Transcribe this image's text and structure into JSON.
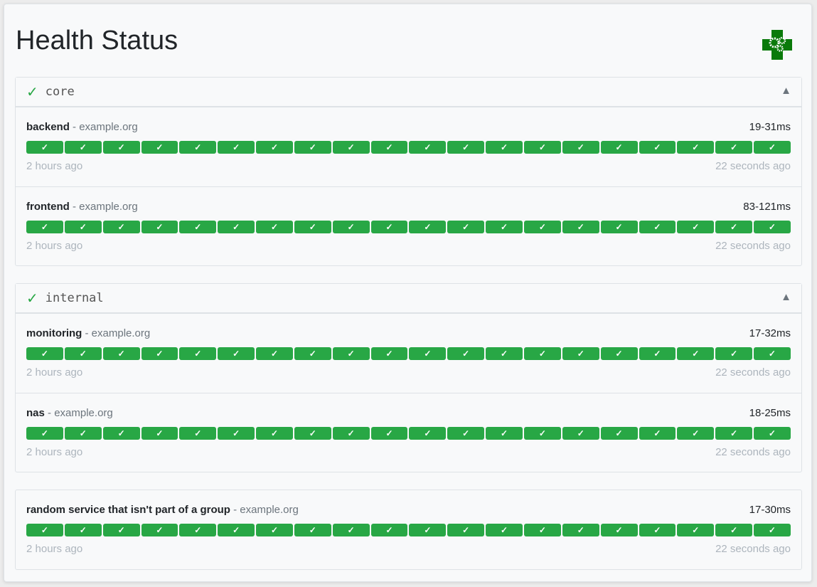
{
  "title": "Health Status",
  "colors": {
    "success": "#28a745",
    "logo": "#0a7a0a"
  },
  "logo_icon": "health-cross-gears-icon",
  "groups": [
    {
      "name": "core",
      "status": "✓",
      "toggle": "▲",
      "services": [
        {
          "name": "backend",
          "host": "example.org",
          "response": "19-31ms",
          "results": 20,
          "oldest": "2 hours ago",
          "newest": "22 seconds ago"
        },
        {
          "name": "frontend",
          "host": "example.org",
          "response": "83-121ms",
          "results": 20,
          "oldest": "2 hours ago",
          "newest": "22 seconds ago"
        }
      ]
    },
    {
      "name": "internal",
      "status": "✓",
      "toggle": "▲",
      "services": [
        {
          "name": "monitoring",
          "host": "example.org",
          "response": "17-32ms",
          "results": 20,
          "oldest": "2 hours ago",
          "newest": "22 seconds ago"
        },
        {
          "name": "nas",
          "host": "example.org",
          "response": "18-25ms",
          "results": 20,
          "oldest": "2 hours ago",
          "newest": "22 seconds ago"
        }
      ]
    },
    {
      "name": "",
      "services": [
        {
          "name": "random service that isn't part of a group",
          "host": "example.org",
          "response": "17-30ms",
          "results": 20,
          "oldest": "2 hours ago",
          "newest": "22 seconds ago"
        }
      ]
    }
  ],
  "bar_mark": "✓",
  "host_sep": " - "
}
